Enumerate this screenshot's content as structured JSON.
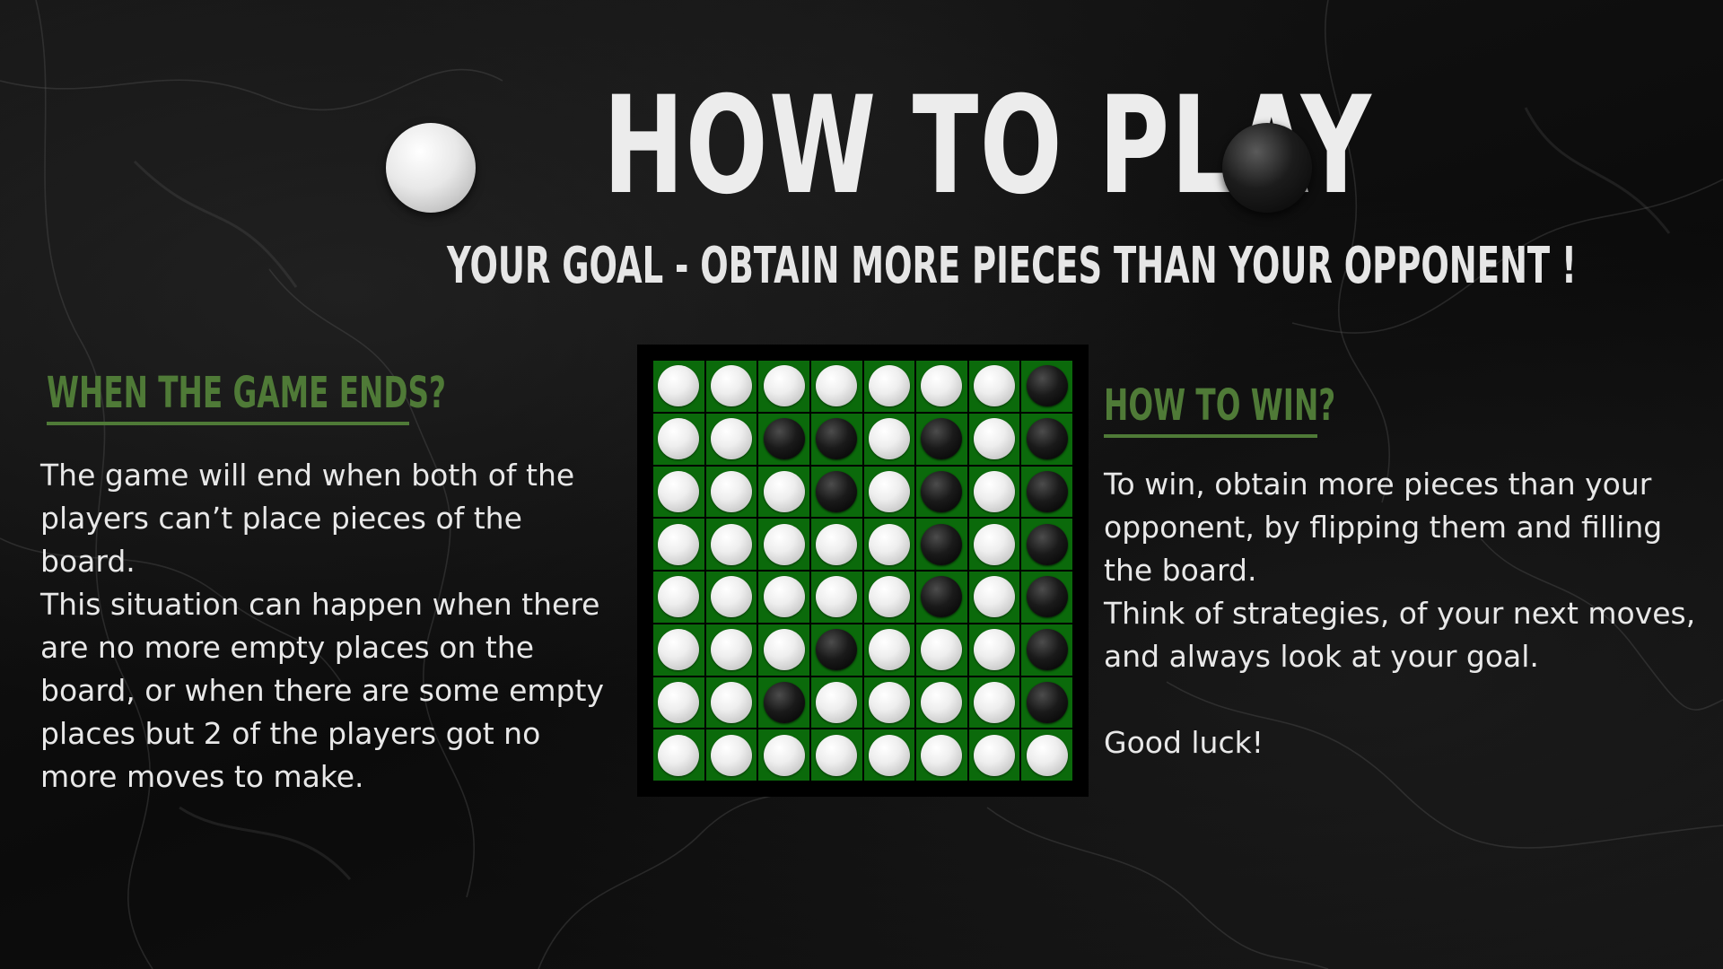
{
  "title": "HOW TO PLAY",
  "subtitle": "YOUR GOAL - OBTAIN MORE PIECES THAN YOUR OPPONENT !",
  "decor": {
    "left_disc": "white-disc-icon",
    "right_disc": "black-disc-icon"
  },
  "colors": {
    "heading_green": "#4f7a37",
    "board_green": "#0b6a0b",
    "background": "#0d0d0d",
    "text": "#e8e8e8"
  },
  "left_section": {
    "heading": "WHEN THE GAME ENDS?",
    "paragraphs": [
      "The game will end when both of the players can’t place pieces of the board.",
      "This situation can happen when there are no more empty places on the board, or when there are some empty places but 2 of the players got no more moves to make."
    ]
  },
  "right_section": {
    "heading": "HOW TO WIN?",
    "paragraphs": [
      "To win, obtain more pieces than your opponent, by flipping them and filling the board.",
      "Think of strategies, of your next moves, and always look at your goal.",
      "Good luck!"
    ]
  },
  "board": {
    "size": 8,
    "rows": [
      "WWWWWWWB",
      "WWBBWBWB",
      "WWWBWBWB",
      "WWWWWBWB",
      "WWWWWBWB",
      "WWWBWWWB",
      "WWBWWWWB",
      "WWWWWWWW"
    ]
  }
}
